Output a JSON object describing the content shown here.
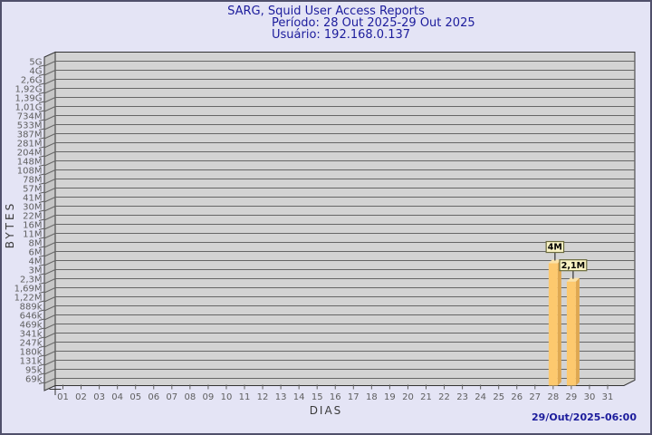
{
  "page": {
    "background": "#e4e4f5",
    "border_color": "#50506b"
  },
  "header": {
    "title": "SARG, Squid User Access Reports",
    "period": "Período: 28 Out 2025-29 Out 2025",
    "user": "Usuário: 192.168.0.137",
    "color": "#1c1c9c"
  },
  "footer": {
    "timestamp": "29/Out/2025-06:00",
    "color": "#1c1c9c"
  },
  "chart_data": {
    "type": "bar",
    "title": "SARG, Squid User Access Reports",
    "period": "28 Out 2025-29 Out 2025",
    "user": "192.168.0.137",
    "xlabel": "DIAS",
    "ylabel": "BYTES",
    "x_categories": [
      "01",
      "02",
      "03",
      "04",
      "05",
      "06",
      "07",
      "08",
      "09",
      "10",
      "11",
      "12",
      "13",
      "14",
      "15",
      "16",
      "17",
      "18",
      "19",
      "20",
      "21",
      "22",
      "23",
      "24",
      "25",
      "26",
      "27",
      "28",
      "29",
      "30",
      "31"
    ],
    "y_axis": {
      "scale": "log",
      "unit": "bytes",
      "min_bytes": 69000,
      "max_bytes": 5000000000,
      "tick_labels_top_to_bottom": [
        "5G",
        "4G",
        "2,6G",
        "1,92G",
        "1,39G",
        "1,01G",
        "734M",
        "533M",
        "387M",
        "281M",
        "204M",
        "148M",
        "108M",
        "78M",
        "57M",
        "41M",
        "30M",
        "22M",
        "16M",
        "11M",
        "8M",
        "6M",
        "4M",
        "3M",
        "2,3M",
        "1,69M",
        "1,22M",
        "889k",
        "646k",
        "469k",
        "341k",
        "247k",
        "180k",
        "131k",
        "95k",
        "69k"
      ]
    },
    "bars": [
      {
        "day": "28",
        "value_bytes": 4000000,
        "value_label": "4M"
      },
      {
        "day": "29",
        "value_bytes": 2100000,
        "value_label": "2,1M"
      }
    ],
    "grid": true,
    "legend": null,
    "colors": {
      "bar_front": "#fdc96e",
      "bar_side": "#dfa851",
      "bar_top": "#fbe3a8",
      "plot_floor": "#d3d3d3",
      "plot_wall": "#c6c6c6",
      "grid_line": "#666666",
      "box_outline": "#333333",
      "tick_text": "#5f5f5f",
      "value_label_bg": "#faf3c4",
      "value_label_border": "#6b6b3d",
      "value_label_text": "#000000"
    }
  }
}
